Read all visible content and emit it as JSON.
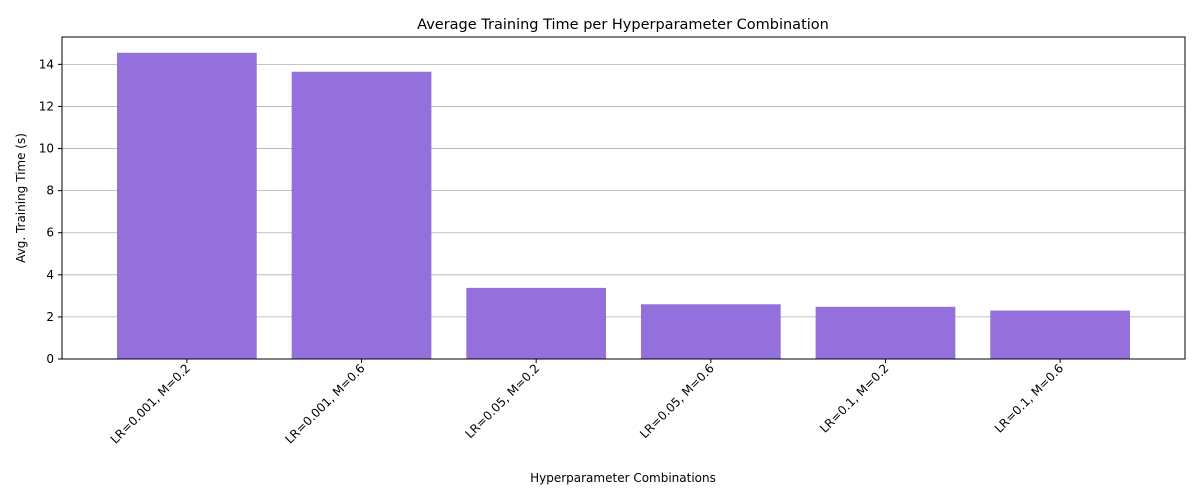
{
  "chart_data": {
    "type": "bar",
    "title": "Average Training Time per Hyperparameter Combination",
    "xlabel": "Hyperparameter Combinations",
    "ylabel": "Avg. Training Time (s)",
    "categories": [
      "LR=0.001, M=0.2",
      "LR=0.001, M=0.6",
      "LR=0.05, M=0.2",
      "LR=0.05, M=0.6",
      "LR=0.1, M=0.2",
      "LR=0.1, M=0.6"
    ],
    "values": [
      14.55,
      13.65,
      3.38,
      2.6,
      2.48,
      2.3
    ],
    "ylim": [
      0,
      15.3
    ],
    "yticks": [
      0,
      2,
      4,
      6,
      8,
      10,
      12,
      14
    ],
    "grid": "y",
    "bar_color": "#9370DB",
    "grid_color": "#b0b0b0",
    "x_tick_rotation_deg": 45
  }
}
